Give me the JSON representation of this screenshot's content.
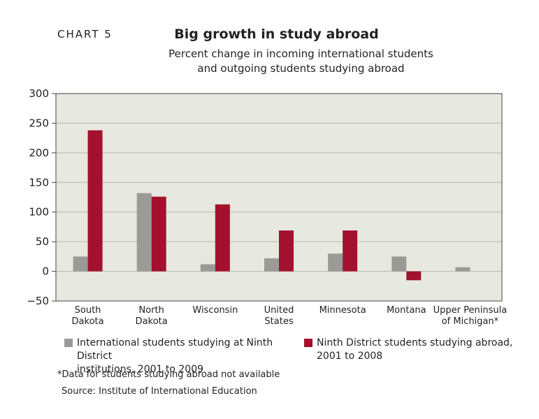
{
  "header": {
    "chart_label": "CHART 5",
    "title": "Big growth in study abroad",
    "subtitle_line1": "Percent change in incoming international students",
    "subtitle_line2": "and outgoing students studying abroad"
  },
  "chart_data": {
    "type": "bar",
    "categories": [
      [
        "South",
        "Dakota"
      ],
      [
        "North",
        "Dakota"
      ],
      [
        "Wisconsin"
      ],
      [
        "United",
        "States"
      ],
      [
        "Minnesota"
      ],
      [
        "Montana"
      ],
      [
        "Upper Peninsula",
        "of Michigan*"
      ]
    ],
    "series": [
      {
        "name": "International students studying at Ninth District institutions, 2001 to 2009",
        "color": "#9a9b96",
        "values": [
          25,
          132,
          12,
          22,
          30,
          25,
          7
        ]
      },
      {
        "name": "Ninth District students studying abroad, 2001 to 2008",
        "color": "#a3112f",
        "values": [
          238,
          126,
          113,
          69,
          69,
          -15,
          null
        ]
      }
    ],
    "y_ticks": [
      300,
      250,
      200,
      150,
      100,
      50,
      0,
      -50
    ],
    "ylim": [
      -50,
      300
    ],
    "grid": true,
    "plot_background": "#e7e8df",
    "legend_position": "bottom"
  },
  "legend": {
    "item1_line1": "International students studying at Ninth District",
    "item1_line2": "institutions, 2001 to 2009",
    "item2_line1": "Ninth District students studying abroad,",
    "item2_line2": "2001 to 2008"
  },
  "footer": {
    "note": "*Data for students studying abroad not available",
    "source": "Source: Institute of International Education"
  }
}
